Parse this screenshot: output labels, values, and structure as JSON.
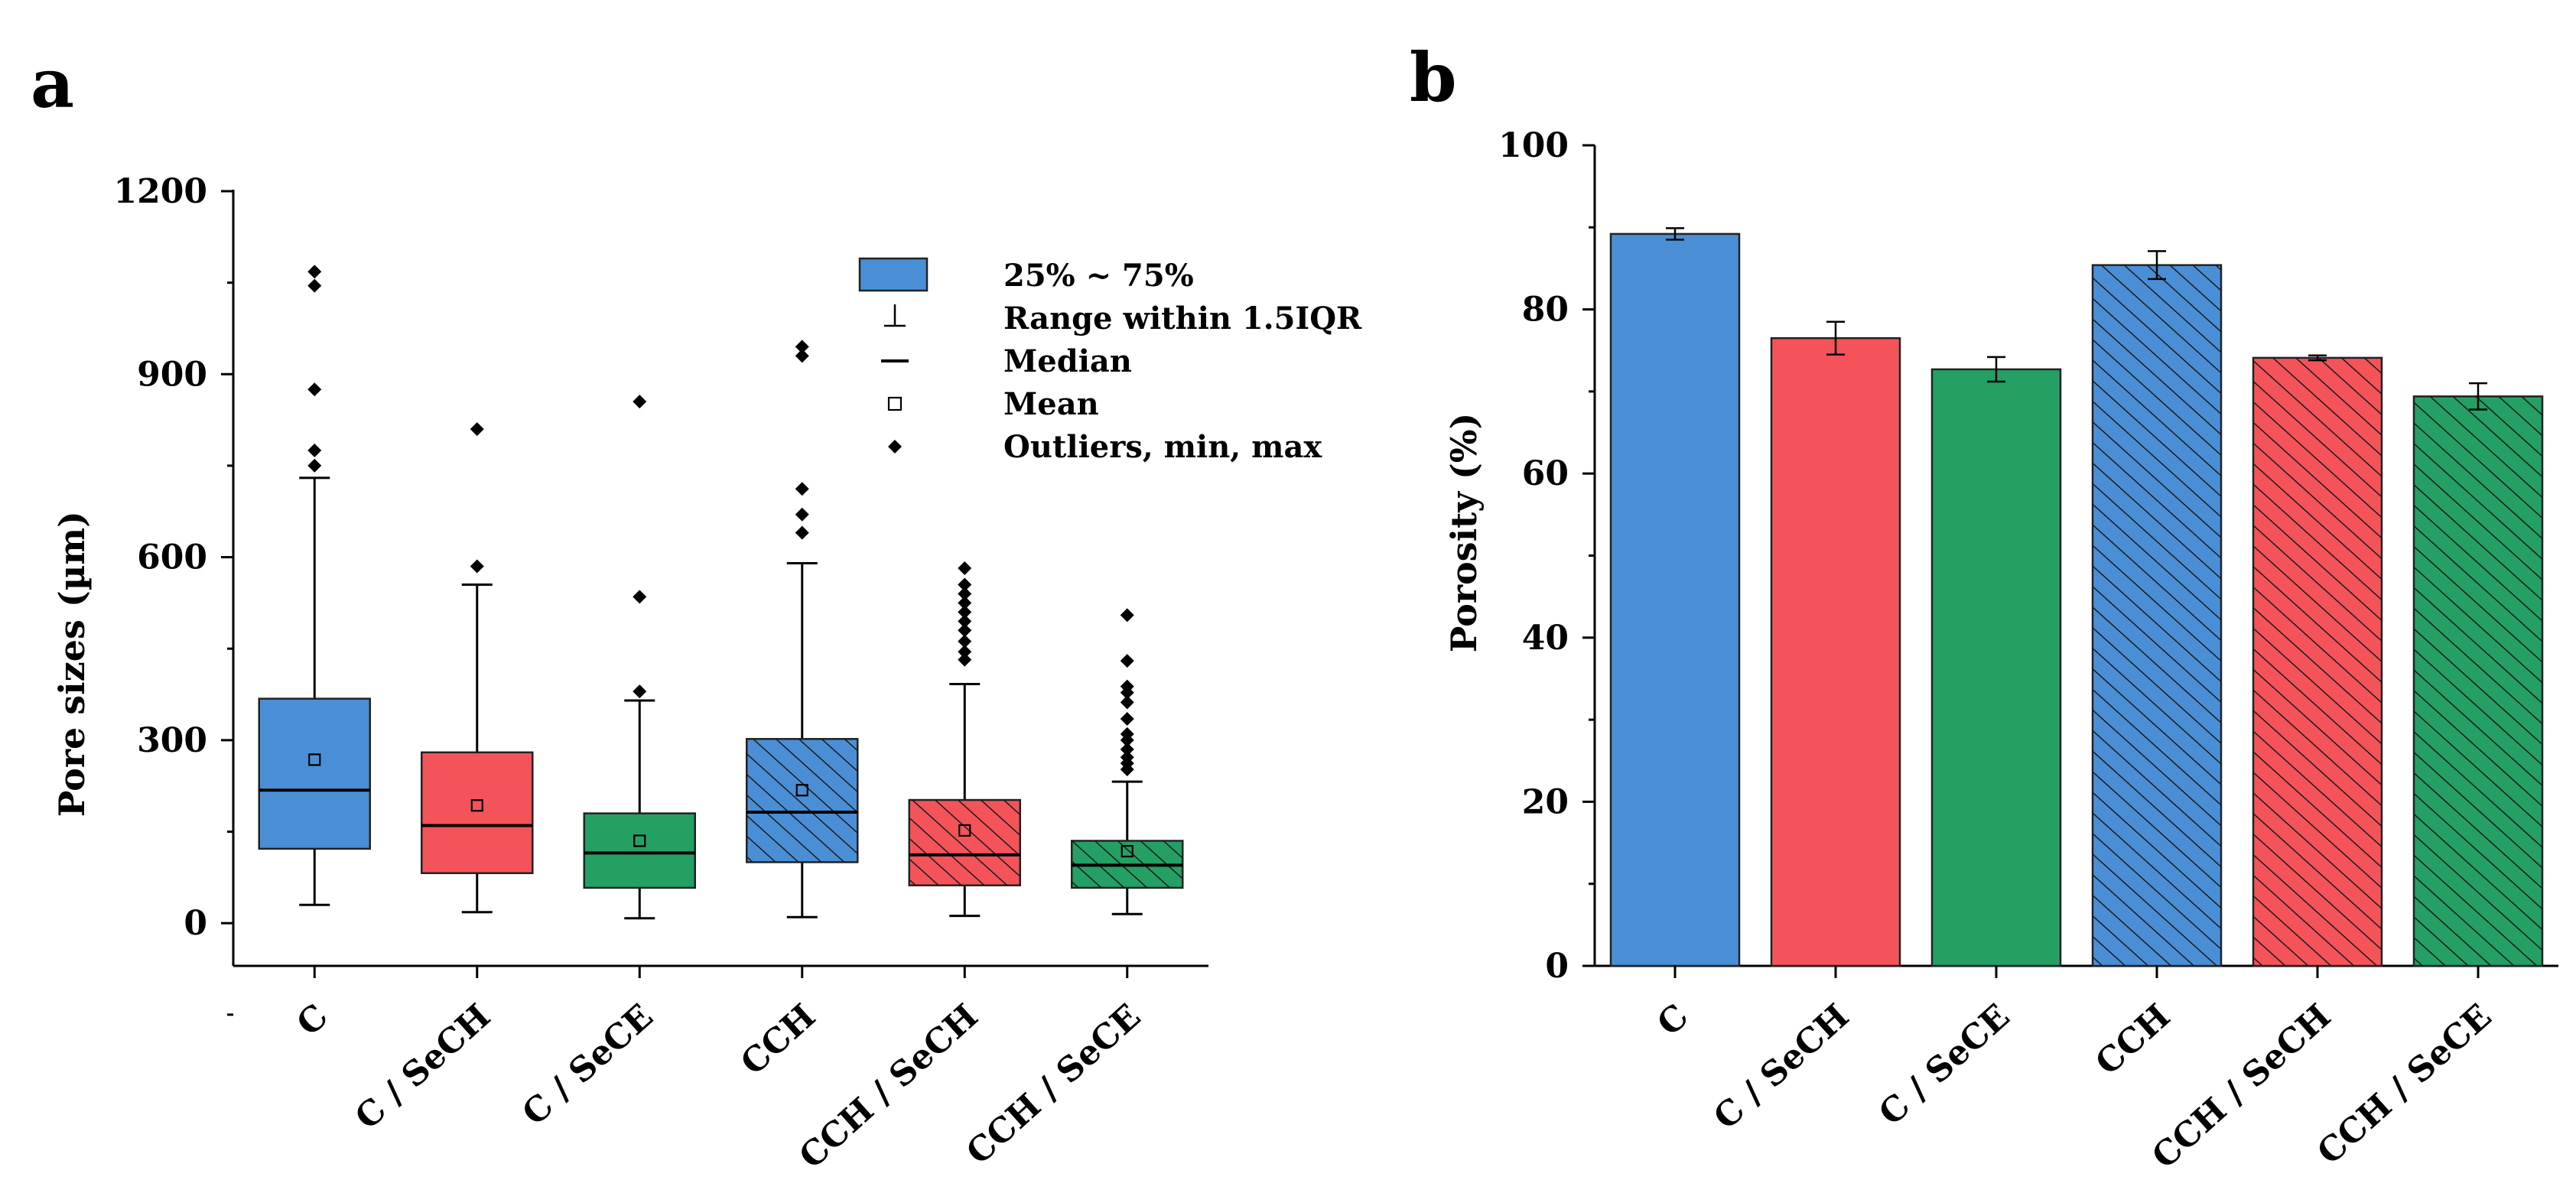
{
  "chart_data": [
    {
      "panel_label": "a",
      "type": "boxplot",
      "ylabel": "Pore sizes (µm)",
      "ylim": [
        -70,
        1200
      ],
      "yticks": [
        0,
        300,
        600,
        900,
        1200
      ],
      "categories": [
        "C",
        "C / SeCH",
        "C / SeCE",
        "CCH",
        "CCH / SeCH",
        "CCH / SeCE"
      ],
      "legend": {
        "position": "top-right",
        "entries": [
          "25% ~ 75%",
          "Range within 1.5IQR",
          "Median",
          "Mean",
          "Outliers, min, max"
        ]
      },
      "boxes": [
        {
          "category": "C",
          "color": "#4a8fd6",
          "hatched": false,
          "q1": 122,
          "q3": 368,
          "median": 218,
          "mean": 268,
          "whisker_low": 30,
          "whisker_high": 730,
          "outliers": [
            750,
            775,
            875,
            1045,
            1068
          ]
        },
        {
          "category": "C / SeCH",
          "color": "#f4535a",
          "hatched": false,
          "q1": 82,
          "q3": 280,
          "median": 160,
          "mean": 193,
          "whisker_low": 18,
          "whisker_high": 555,
          "outliers": [
            585,
            810
          ]
        },
        {
          "category": "C / SeCE",
          "color": "#24a065",
          "hatched": false,
          "q1": 58,
          "q3": 180,
          "median": 115,
          "mean": 135,
          "whisker_low": 8,
          "whisker_high": 365,
          "outliers": [
            380,
            535,
            855
          ]
        },
        {
          "category": "CCH",
          "color": "#4a8fd6",
          "hatched": true,
          "q1": 100,
          "q3": 302,
          "median": 182,
          "mean": 218,
          "whisker_low": 10,
          "whisker_high": 590,
          "outliers": [
            640,
            670,
            712,
            930,
            945
          ]
        },
        {
          "category": "CCH / SeCH",
          "color": "#f4535a",
          "hatched": true,
          "q1": 62,
          "q3": 202,
          "median": 112,
          "mean": 152,
          "whisker_low": 12,
          "whisker_high": 392,
          "outliers": [
            432,
            445,
            462,
            480,
            495,
            510,
            525,
            540,
            555,
            582
          ]
        },
        {
          "category": "CCH / SeCE",
          "color": "#24a065",
          "hatched": true,
          "q1": 58,
          "q3": 135,
          "median": 95,
          "mean": 118,
          "whisker_low": 15,
          "whisker_high": 232,
          "outliers": [
            252,
            262,
            272,
            285,
            300,
            310,
            335,
            362,
            378,
            388,
            430,
            505
          ]
        }
      ]
    },
    {
      "panel_label": "b",
      "type": "bar",
      "ylabel": "Porosity (%)",
      "ylim": [
        0,
        100
      ],
      "yticks": [
        0,
        20,
        40,
        60,
        80,
        100
      ],
      "categories": [
        "C",
        "C / SeCH",
        "C / SeCE",
        "CCH",
        "CCH / SeCH",
        "CCH / SeCE"
      ],
      "values": [
        89.2,
        76.5,
        72.7,
        85.4,
        74.1,
        69.4
      ],
      "errors": [
        0.7,
        2.0,
        1.5,
        1.7,
        0.3,
        1.6
      ],
      "colors": [
        "#4a8fd6",
        "#f4535a",
        "#24a065",
        "#4a8fd6",
        "#f4535a",
        "#24a065"
      ],
      "hatched": [
        false,
        false,
        false,
        true,
        true,
        true
      ]
    }
  ]
}
